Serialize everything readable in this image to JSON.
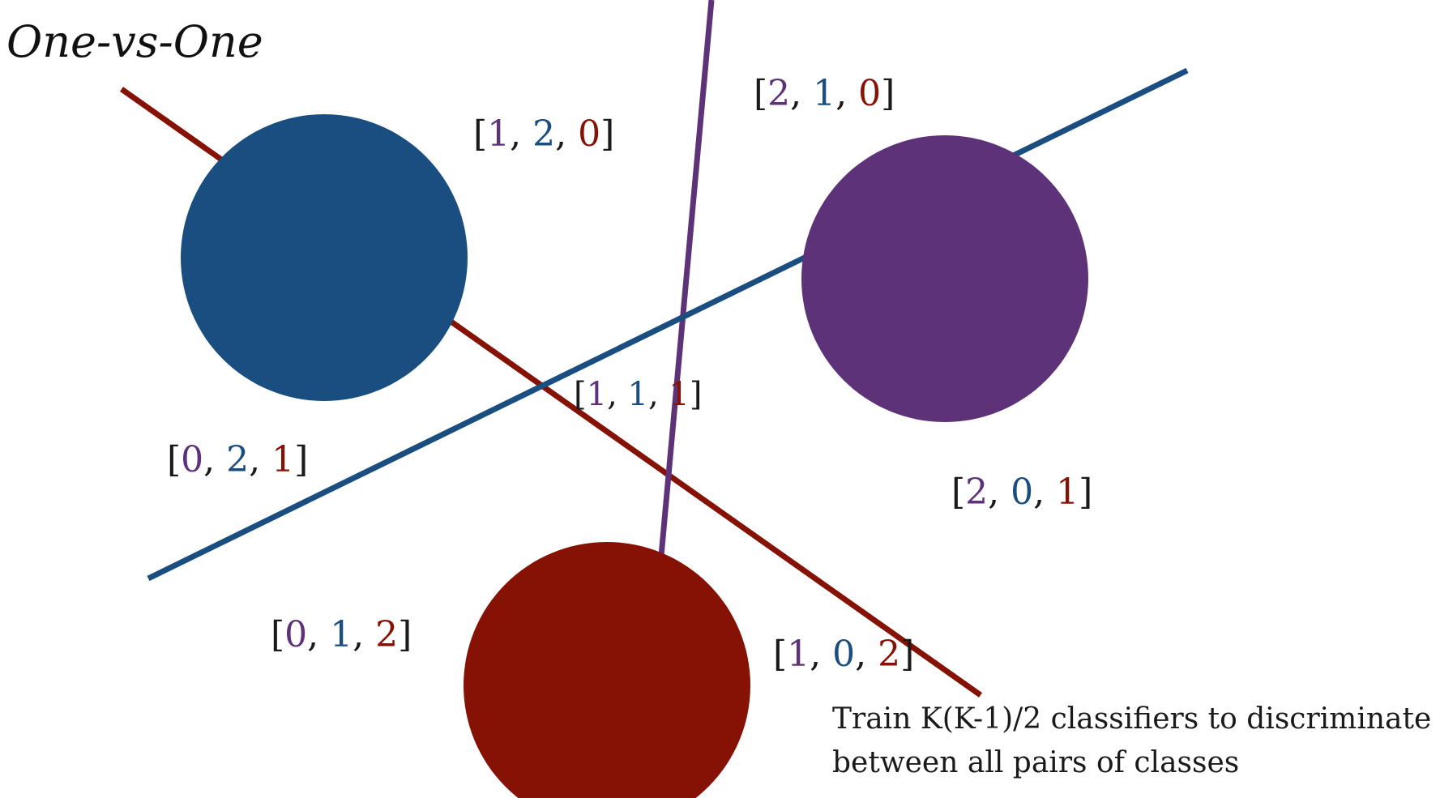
{
  "title": "One-vs-One",
  "caption": {
    "line1": "Train K(K-1)/2 classifiers to discriminate",
    "line2": "between all pairs of classes"
  },
  "colors": {
    "blue": "#1a4e80",
    "purple": "#5e3278",
    "red": "#851205",
    "text": "#1a1a1a"
  },
  "classes": [
    {
      "id": "class-blue",
      "color": "blue"
    },
    {
      "id": "class-purple",
      "color": "purple"
    },
    {
      "id": "class-red",
      "color": "red"
    }
  ],
  "separators": [
    {
      "id": "red-separator",
      "color": "red"
    },
    {
      "id": "purple-separator",
      "color": "purple"
    },
    {
      "id": "blue-separator",
      "color": "blue"
    }
  ],
  "vote_labels": [
    {
      "id": "vote-120",
      "values": [
        "1",
        "2",
        "0"
      ]
    },
    {
      "id": "vote-210",
      "values": [
        "2",
        "1",
        "0"
      ]
    },
    {
      "id": "vote-111",
      "values": [
        "1",
        "1",
        "1"
      ]
    },
    {
      "id": "vote-021",
      "values": [
        "0",
        "2",
        "1"
      ]
    },
    {
      "id": "vote-201",
      "values": [
        "2",
        "0",
        "1"
      ]
    },
    {
      "id": "vote-012",
      "values": [
        "0",
        "1",
        "2"
      ]
    },
    {
      "id": "vote-102",
      "values": [
        "1",
        "0",
        "2"
      ]
    }
  ]
}
